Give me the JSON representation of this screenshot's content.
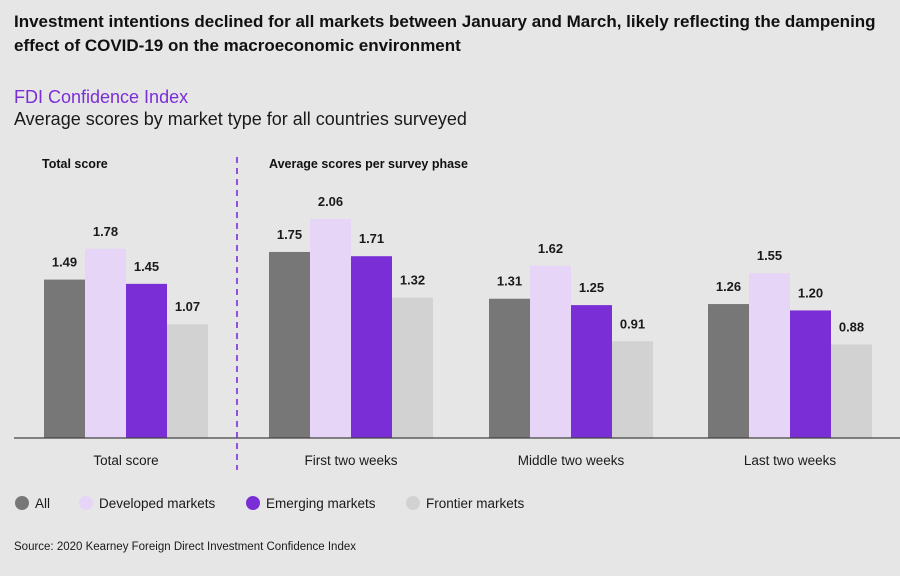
{
  "headline": "Investment intentions declined for all markets between January and March, likely reflecting the dampening effect of COVID-19 on the macroeconomic environment",
  "source": "Source: 2020 Kearney Foreign Direct Investment Confidence Index",
  "chart_data": {
    "type": "bar",
    "title": "FDI Confidence Index",
    "subtitle": "Average scores by market type for all countries surveyed",
    "section_labels": [
      "Total score",
      "Average scores per survey phase"
    ],
    "categories": [
      "Total score",
      "First two weeks",
      "Middle two weeks",
      "Last two weeks"
    ],
    "series": [
      {
        "name": "All",
        "color": "#777777",
        "values": [
          1.49,
          1.75,
          1.31,
          1.26
        ]
      },
      {
        "name": "Developed markets",
        "color": "#e6d5f7",
        "values": [
          1.78,
          2.06,
          1.62,
          1.55
        ]
      },
      {
        "name": "Emerging markets",
        "color": "#7a2ed6",
        "values": [
          1.45,
          1.71,
          1.25,
          1.2
        ]
      },
      {
        "name": "Frontier markets",
        "color": "#d2d2d2",
        "values": [
          1.07,
          1.32,
          0.91,
          0.88
        ]
      }
    ],
    "ylim": [
      0,
      2.25
    ],
    "grid": false,
    "legend_position": "bottom-left",
    "divider_after_category": 0
  }
}
